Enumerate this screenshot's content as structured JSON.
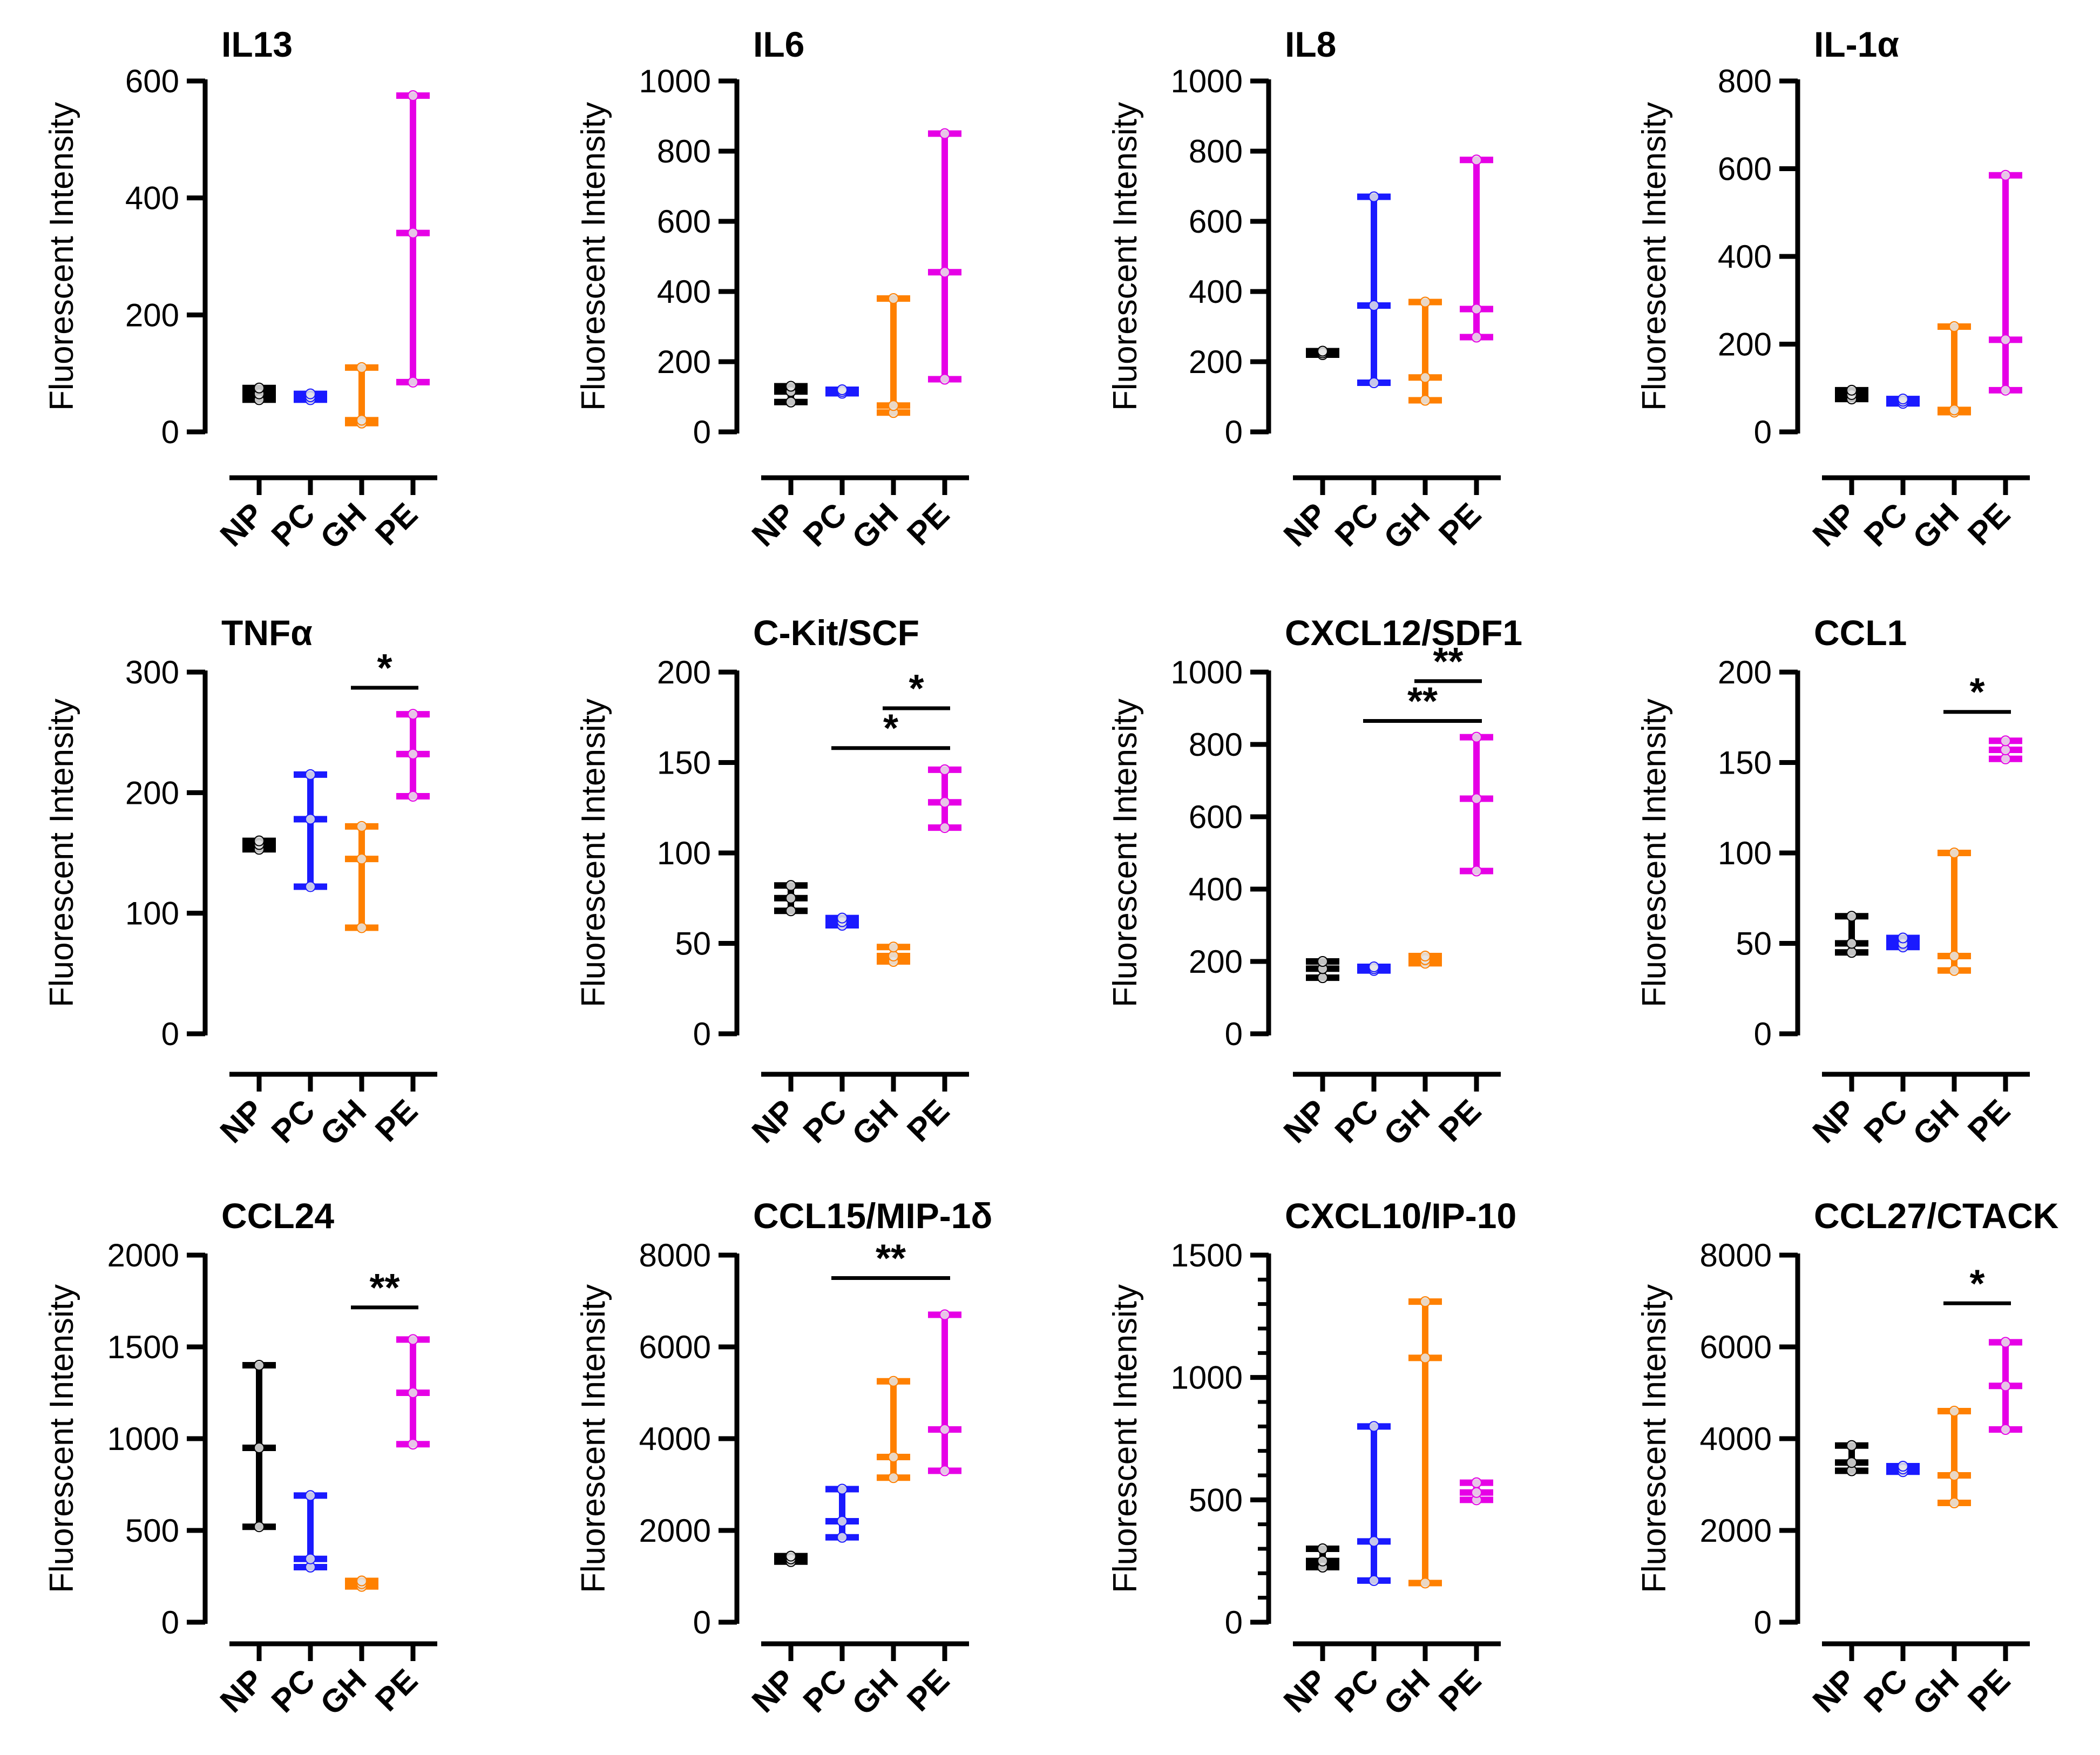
{
  "figure": {
    "categories": [
      "NP",
      "PC",
      "GH",
      "PE"
    ],
    "colors": {
      "NP": "#000000",
      "PC": "#1a1aff",
      "GH": "#ff8000",
      "PE": "#e600e6",
      "axis": "#000000"
    },
    "ylabel": "Fluorescent Intensity"
  },
  "chart_data": [
    {
      "type": "floating-bar",
      "title": "IL13",
      "ylabel": "Fluorescent Intensity",
      "ylim": [
        0,
        600
      ],
      "yticks": [
        0,
        200,
        400,
        600
      ],
      "yticks_label": [
        "0",
        "200",
        "400",
        "600"
      ],
      "minor_ticks": 0,
      "categories": [
        "NP",
        "PC",
        "GH",
        "PE"
      ],
      "series": [
        {
          "name": "NP",
          "min": 55,
          "median": 65,
          "max": 75,
          "points": [
            55,
            65,
            75
          ]
        },
        {
          "name": "PC",
          "min": 55,
          "median": 60,
          "max": 65,
          "points": [
            55,
            60,
            65
          ]
        },
        {
          "name": "GH",
          "min": 15,
          "median": 20,
          "max": 110,
          "points": [
            15,
            20,
            110
          ]
        },
        {
          "name": "PE",
          "min": 85,
          "median": 340,
          "max": 575,
          "points": [
            85,
            340,
            575
          ]
        }
      ],
      "significance": []
    },
    {
      "type": "floating-bar",
      "title": "IL6",
      "ylabel": "Fluorescent Intensity",
      "ylim": [
        0,
        1000
      ],
      "yticks": [
        0,
        200,
        400,
        600,
        800,
        1000
      ],
      "yticks_label": [
        "0",
        "200",
        "400",
        "600",
        "800",
        "1000"
      ],
      "minor_ticks": 0,
      "categories": [
        "NP",
        "PC",
        "GH",
        "PE"
      ],
      "series": [
        {
          "name": "NP",
          "min": 85,
          "median": 115,
          "max": 130,
          "points": [
            85,
            115,
            130
          ]
        },
        {
          "name": "PC",
          "min": 110,
          "median": 115,
          "max": 120,
          "points": [
            110,
            115,
            120
          ]
        },
        {
          "name": "GH",
          "min": 55,
          "median": 75,
          "max": 380,
          "points": [
            55,
            75,
            380
          ]
        },
        {
          "name": "PE",
          "min": 150,
          "median": 455,
          "max": 850,
          "points": [
            150,
            455,
            850
          ]
        }
      ],
      "significance": []
    },
    {
      "type": "floating-bar",
      "title": "IL8",
      "ylabel": "Fluorescent Intensity",
      "ylim": [
        0,
        1000
      ],
      "yticks": [
        0,
        200,
        400,
        600,
        800,
        1000
      ],
      "yticks_label": [
        "0",
        "200",
        "400",
        "600",
        "800",
        "1000"
      ],
      "minor_ticks": 0,
      "categories": [
        "NP",
        "PC",
        "GH",
        "PE"
      ],
      "series": [
        {
          "name": "NP",
          "min": 220,
          "median": 225,
          "max": 230,
          "points": [
            220,
            225,
            230
          ]
        },
        {
          "name": "PC",
          "min": 140,
          "median": 360,
          "max": 670,
          "points": [
            140,
            360,
            670
          ]
        },
        {
          "name": "GH",
          "min": 90,
          "median": 155,
          "max": 370,
          "points": [
            90,
            155,
            370
          ]
        },
        {
          "name": "PE",
          "min": 270,
          "median": 350,
          "max": 775,
          "points": [
            270,
            350,
            775
          ]
        }
      ],
      "significance": []
    },
    {
      "type": "floating-bar",
      "title": "IL-1α",
      "ylabel": "Fluorescent Intensity",
      "ylim": [
        0,
        800
      ],
      "yticks": [
        0,
        200,
        400,
        600,
        800
      ],
      "yticks_label": [
        "0",
        "200",
        "400",
        "600",
        "800"
      ],
      "minor_ticks": 0,
      "categories": [
        "NP",
        "PC",
        "GH",
        "PE"
      ],
      "series": [
        {
          "name": "NP",
          "min": 75,
          "median": 85,
          "max": 95,
          "points": [
            75,
            85,
            95
          ]
        },
        {
          "name": "PC",
          "min": 65,
          "median": 70,
          "max": 75,
          "points": [
            65,
            70,
            75
          ]
        },
        {
          "name": "GH",
          "min": 45,
          "median": 50,
          "max": 240,
          "points": [
            45,
            50,
            240
          ]
        },
        {
          "name": "PE",
          "min": 95,
          "median": 210,
          "max": 585,
          "points": [
            95,
            210,
            585
          ]
        }
      ],
      "significance": []
    },
    {
      "type": "floating-bar",
      "title": "TNFα",
      "ylabel": "Fluorescent Intensity",
      "ylim": [
        0,
        300
      ],
      "yticks": [
        0,
        100,
        200,
        300
      ],
      "yticks_label": [
        "0",
        "100",
        "200",
        "300"
      ],
      "minor_ticks": 0,
      "categories": [
        "NP",
        "PC",
        "GH",
        "PE"
      ],
      "series": [
        {
          "name": "NP",
          "min": 153,
          "median": 157,
          "max": 160,
          "points": [
            153,
            157,
            160
          ]
        },
        {
          "name": "PC",
          "min": 122,
          "median": 178,
          "max": 215,
          "points": [
            122,
            178,
            215
          ]
        },
        {
          "name": "GH",
          "min": 88,
          "median": 145,
          "max": 172,
          "points": [
            88,
            145,
            172
          ]
        },
        {
          "name": "PE",
          "min": 197,
          "median": 232,
          "max": 265,
          "points": [
            197,
            232,
            265
          ]
        }
      ],
      "significance": [
        {
          "from": "GH",
          "to": "PE",
          "y": 287,
          "label": "*"
        }
      ]
    },
    {
      "type": "floating-bar",
      "title": "C-Kit/SCF",
      "ylabel": "Fluorescent Intensity",
      "ylim": [
        0,
        200
      ],
      "yticks": [
        0,
        50,
        100,
        150,
        200
      ],
      "yticks_label": [
        "0",
        "50",
        "100",
        "150",
        "200"
      ],
      "minor_ticks": 0,
      "categories": [
        "NP",
        "PC",
        "GH",
        "PE"
      ],
      "series": [
        {
          "name": "NP",
          "min": 68,
          "median": 75,
          "max": 82,
          "points": [
            68,
            75,
            82
          ]
        },
        {
          "name": "PC",
          "min": 60,
          "median": 62,
          "max": 64,
          "points": [
            60,
            62,
            64
          ]
        },
        {
          "name": "GH",
          "min": 40,
          "median": 43,
          "max": 48,
          "points": [
            40,
            43,
            48
          ]
        },
        {
          "name": "PE",
          "min": 114,
          "median": 128,
          "max": 146,
          "points": [
            114,
            128,
            146
          ]
        }
      ],
      "significance": [
        {
          "from": "PC",
          "to": "PE",
          "y": 158,
          "label": "*"
        },
        {
          "from": "GH",
          "to": "PE",
          "y": 180,
          "label": "*"
        }
      ]
    },
    {
      "type": "floating-bar",
      "title": "CXCL12/SDF1",
      "ylabel": "Fluorescent Intensity",
      "ylim": [
        0,
        1000
      ],
      "yticks": [
        0,
        200,
        400,
        600,
        800,
        1000
      ],
      "yticks_label": [
        "0",
        "200",
        "400",
        "600",
        "800",
        "1000"
      ],
      "minor_ticks": 0,
      "categories": [
        "NP",
        "PC",
        "GH",
        "PE"
      ],
      "series": [
        {
          "name": "NP",
          "min": 155,
          "median": 180,
          "max": 200,
          "points": [
            155,
            180,
            200
          ]
        },
        {
          "name": "PC",
          "min": 175,
          "median": 180,
          "max": 185,
          "points": [
            175,
            180,
            185
          ]
        },
        {
          "name": "GH",
          "min": 195,
          "median": 205,
          "max": 215,
          "points": [
            195,
            205,
            215
          ]
        },
        {
          "name": "PE",
          "min": 450,
          "median": 650,
          "max": 820,
          "points": [
            450,
            650,
            820
          ]
        }
      ],
      "significance": [
        {
          "from": "PC",
          "to": "PE",
          "y": 865,
          "label": "**"
        },
        {
          "from": "GH",
          "to": "PE",
          "y": 975,
          "label": "**"
        }
      ]
    },
    {
      "type": "floating-bar",
      "title": "CCL1",
      "ylabel": "Fluorescent Intensity",
      "ylim": [
        0,
        200
      ],
      "yticks": [
        0,
        50,
        100,
        150,
        200
      ],
      "yticks_label": [
        "0",
        "50",
        "100",
        "150",
        "200"
      ],
      "minor_ticks": 0,
      "categories": [
        "NP",
        "PC",
        "GH",
        "PE"
      ],
      "series": [
        {
          "name": "NP",
          "min": 45,
          "median": 50,
          "max": 65,
          "points": [
            45,
            50,
            65
          ]
        },
        {
          "name": "PC",
          "min": 48,
          "median": 50,
          "max": 53,
          "points": [
            48,
            50,
            53
          ]
        },
        {
          "name": "GH",
          "min": 35,
          "median": 43,
          "max": 100,
          "points": [
            35,
            43,
            100
          ]
        },
        {
          "name": "PE",
          "min": 152,
          "median": 157,
          "max": 162,
          "points": [
            152,
            157,
            162
          ]
        }
      ],
      "significance": [
        {
          "from": "GH",
          "to": "PE",
          "y": 178,
          "label": "*"
        }
      ]
    },
    {
      "type": "floating-bar",
      "title": "CCL24",
      "ylabel": "Fluorescent Intensity",
      "ylim": [
        0,
        2000
      ],
      "yticks": [
        0,
        500,
        1000,
        1500,
        2000
      ],
      "yticks_label": [
        "0",
        "500",
        "1000",
        "1500",
        "2000"
      ],
      "minor_ticks": 0,
      "categories": [
        "NP",
        "PC",
        "GH",
        "PE"
      ],
      "series": [
        {
          "name": "NP",
          "min": 520,
          "median": 950,
          "max": 1400,
          "points": [
            520,
            950,
            1400
          ]
        },
        {
          "name": "PC",
          "min": 300,
          "median": 345,
          "max": 690,
          "points": [
            300,
            345,
            690
          ]
        },
        {
          "name": "GH",
          "min": 195,
          "median": 210,
          "max": 225,
          "points": [
            195,
            210,
            225
          ]
        },
        {
          "name": "PE",
          "min": 970,
          "median": 1250,
          "max": 1540,
          "points": [
            970,
            1250,
            1540
          ]
        }
      ],
      "significance": [
        {
          "from": "GH",
          "to": "PE",
          "y": 1715,
          "label": "**"
        }
      ]
    },
    {
      "type": "floating-bar",
      "title": "CCL15/MIP-1δ",
      "ylabel": "Fluorescent Intensity",
      "ylim": [
        0,
        8000
      ],
      "yticks": [
        0,
        2000,
        4000,
        6000,
        8000
      ],
      "yticks_label": [
        "0",
        "2000",
        "4000",
        "6000",
        "8000"
      ],
      "minor_ticks": 0,
      "categories": [
        "NP",
        "PC",
        "GH",
        "PE"
      ],
      "series": [
        {
          "name": "NP",
          "min": 1320,
          "median": 1380,
          "max": 1440,
          "points": [
            1320,
            1380,
            1440
          ]
        },
        {
          "name": "PC",
          "min": 1850,
          "median": 2200,
          "max": 2900,
          "points": [
            1850,
            2200,
            2900
          ]
        },
        {
          "name": "GH",
          "min": 3150,
          "median": 3600,
          "max": 5250,
          "points": [
            3150,
            3600,
            5250
          ]
        },
        {
          "name": "PE",
          "min": 3300,
          "median": 4200,
          "max": 6700,
          "points": [
            3300,
            4200,
            6700
          ]
        }
      ],
      "significance": [
        {
          "from": "PC",
          "to": "PE",
          "y": 7500,
          "label": "**"
        }
      ]
    },
    {
      "type": "floating-bar",
      "title": "CXCL10/IP-10",
      "ylabel": "Fluorescent Intensity",
      "ylim": [
        0,
        1500
      ],
      "yticks": [
        0,
        500,
        1000,
        1500
      ],
      "yticks_label": [
        "0",
        "500",
        "1000",
        "1500"
      ],
      "minor_ticks": 4,
      "categories": [
        "NP",
        "PC",
        "GH",
        "PE"
      ],
      "series": [
        {
          "name": "NP",
          "min": 225,
          "median": 250,
          "max": 300,
          "points": [
            225,
            250,
            300
          ]
        },
        {
          "name": "PC",
          "min": 170,
          "median": 330,
          "max": 800,
          "points": [
            170,
            330,
            800
          ]
        },
        {
          "name": "GH",
          "min": 160,
          "median": 1080,
          "max": 1310,
          "points": [
            160,
            1080,
            1310
          ]
        },
        {
          "name": "PE",
          "min": 500,
          "median": 530,
          "max": 570,
          "points": [
            500,
            530,
            570
          ]
        }
      ],
      "significance": []
    },
    {
      "type": "floating-bar",
      "title": "CCL27/CTACK",
      "ylabel": "Fluorescent Intensity",
      "ylim": [
        0,
        8000
      ],
      "yticks": [
        0,
        2000,
        4000,
        6000,
        8000
      ],
      "yticks_label": [
        "0",
        "2000",
        "4000",
        "6000",
        "8000"
      ],
      "minor_ticks": 0,
      "categories": [
        "NP",
        "PC",
        "GH",
        "PE"
      ],
      "series": [
        {
          "name": "NP",
          "min": 3300,
          "median": 3480,
          "max": 3850,
          "points": [
            3300,
            3480,
            3850
          ]
        },
        {
          "name": "PC",
          "min": 3280,
          "median": 3340,
          "max": 3400,
          "points": [
            3280,
            3340,
            3400
          ]
        },
        {
          "name": "GH",
          "min": 2600,
          "median": 3200,
          "max": 4600,
          "points": [
            2600,
            3200,
            4600
          ]
        },
        {
          "name": "PE",
          "min": 4200,
          "median": 5150,
          "max": 6100,
          "points": [
            4200,
            5150,
            6100
          ]
        }
      ],
      "significance": [
        {
          "from": "GH",
          "to": "PE",
          "y": 6950,
          "label": "*"
        }
      ]
    }
  ]
}
